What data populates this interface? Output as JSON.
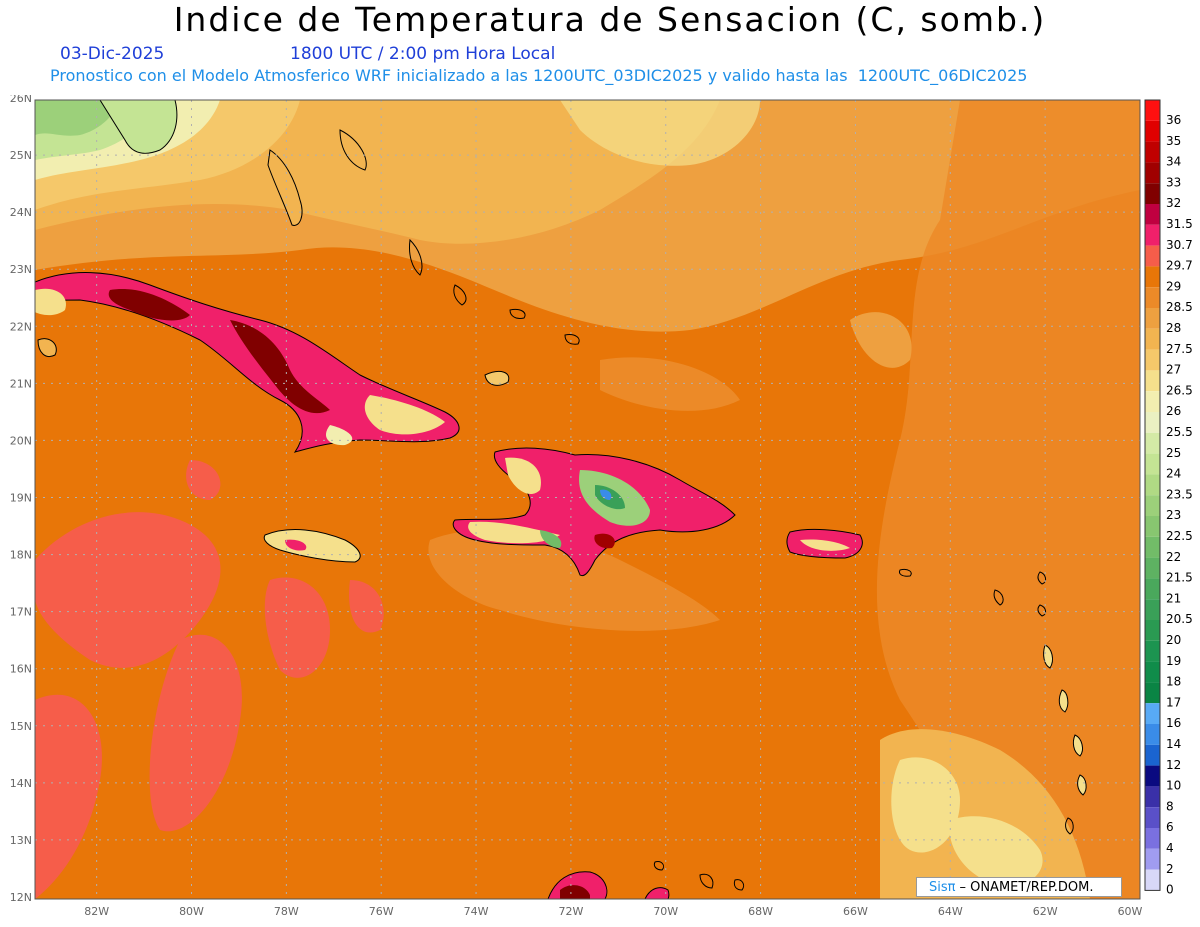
{
  "header": {
    "title": "Indice de Temperatura de Sensacion (C, somb.)",
    "date": "03-Dic-2025",
    "time": "1800 UTC / 2:00 pm Hora Local",
    "subtitle": "Pronostico con el Modelo Atmosferico WRF inicializado a las 1200UTC_03DIC2025 y valido hasta las  1200UTC_06DIC2025"
  },
  "axes": {
    "lat_labels": [
      "26N",
      "25N",
      "24N",
      "23N",
      "22N",
      "21N",
      "20N",
      "19N",
      "18N",
      "17N",
      "16N",
      "15N",
      "14N",
      "13N",
      "12N"
    ],
    "lon_labels": [
      "82W",
      "80W",
      "78W",
      "76W",
      "74W",
      "72W",
      "70W",
      "68W",
      "66W",
      "64W",
      "62W",
      "60W"
    ],
    "lat_range": [
      12,
      26
    ],
    "lon_range": [
      -83.3,
      -60
    ]
  },
  "colorbar": {
    "levels": [
      {
        "label": "36",
        "color": "#ff1010"
      },
      {
        "label": "35",
        "color": "#e00000"
      },
      {
        "label": "34",
        "color": "#c00000"
      },
      {
        "label": "33",
        "color": "#a00000"
      },
      {
        "label": "32",
        "color": "#800000"
      },
      {
        "label": "31.5",
        "color": "#c00040"
      },
      {
        "label": "30.7",
        "color": "#f0206a"
      },
      {
        "label": "29.7",
        "color": "#f65d4a"
      },
      {
        "label": "29",
        "color": "#e87608"
      },
      {
        "label": "28.5",
        "color": "#ec8a28"
      },
      {
        "label": "28",
        "color": "#eea040"
      },
      {
        "label": "27.5",
        "color": "#f2b450"
      },
      {
        "label": "27",
        "color": "#f5c86a"
      },
      {
        "label": "26.5",
        "color": "#f5e08c"
      },
      {
        "label": "26",
        "color": "#f2eeb0"
      },
      {
        "label": "25.5",
        "color": "#eaf0c2"
      },
      {
        "label": "25",
        "color": "#d4eaa6"
      },
      {
        "label": "24",
        "color": "#c4e494"
      },
      {
        "label": "23.5",
        "color": "#b0da84"
      },
      {
        "label": "23",
        "color": "#9cd07a"
      },
      {
        "label": "22.5",
        "color": "#88c670"
      },
      {
        "label": "22",
        "color": "#72bc68"
      },
      {
        "label": "21.5",
        "color": "#5eb262"
      },
      {
        "label": "21",
        "color": "#4aa85c"
      },
      {
        "label": "20.5",
        "color": "#3aa058"
      },
      {
        "label": "20",
        "color": "#2a9a52"
      },
      {
        "label": "19",
        "color": "#1c9450"
      },
      {
        "label": "18",
        "color": "#108c4a"
      },
      {
        "label": "17",
        "color": "#0a8444"
      },
      {
        "label": "16",
        "color": "#58aaf5"
      },
      {
        "label": "14",
        "color": "#3a8ce8"
      },
      {
        "label": "12",
        "color": "#1a64d0"
      },
      {
        "label": "10",
        "color": "#0a0a80"
      },
      {
        "label": "8",
        "color": "#3a30a8"
      },
      {
        "label": "6",
        "color": "#5a50c8"
      },
      {
        "label": "4",
        "color": "#7a70e0"
      },
      {
        "label": "2",
        "color": "#a09cf0"
      },
      {
        "label": "0",
        "color": "#d8d8f8"
      }
    ]
  },
  "credit": {
    "brand": "Sisπ",
    "org": "– ONAMET/REP.DOM."
  }
}
